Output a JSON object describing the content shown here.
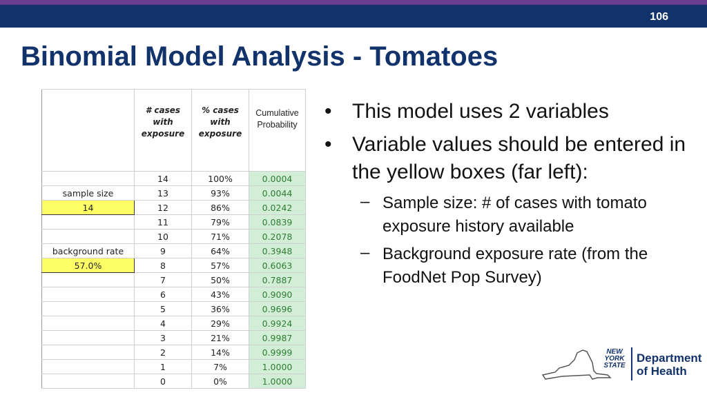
{
  "header": {
    "slide_number": "106"
  },
  "title": "Binomial Model Analysis - Tomatoes",
  "table": {
    "headers": [
      "# cases with exposure",
      "% cases with exposure",
      "Cumulative Probability"
    ],
    "rows": [
      {
        "label": "",
        "n": "14",
        "pct": "100%",
        "cum": "0.0004"
      },
      {
        "label": "sample size",
        "n": "13",
        "pct": "93%",
        "cum": "0.0044"
      },
      {
        "label": "14",
        "n": "12",
        "pct": "86%",
        "cum": "0.0242",
        "input": true
      },
      {
        "label": "",
        "n": "11",
        "pct": "79%",
        "cum": "0.0839"
      },
      {
        "label": "",
        "n": "10",
        "pct": "71%",
        "cum": "0.2078"
      },
      {
        "label": "background rate",
        "n": "9",
        "pct": "64%",
        "cum": "0.3948"
      },
      {
        "label": "57.0%",
        "n": "8",
        "pct": "57%",
        "cum": "0.6063",
        "input": true
      },
      {
        "label": "",
        "n": "7",
        "pct": "50%",
        "cum": "0.7887"
      },
      {
        "label": "",
        "n": "6",
        "pct": "43%",
        "cum": "0.9090"
      },
      {
        "label": "",
        "n": "5",
        "pct": "36%",
        "cum": "0.9696"
      },
      {
        "label": "",
        "n": "4",
        "pct": "29%",
        "cum": "0.9924"
      },
      {
        "label": "",
        "n": "3",
        "pct": "21%",
        "cum": "0.9987"
      },
      {
        "label": "",
        "n": "2",
        "pct": "14%",
        "cum": "0.9999"
      },
      {
        "label": "",
        "n": "1",
        "pct": "7%",
        "cum": "1.0000"
      },
      {
        "label": "",
        "n": "0",
        "pct": "0%",
        "cum": "1.0000"
      }
    ]
  },
  "bullets": [
    {
      "level": 1,
      "text": "This model uses 2 variables"
    },
    {
      "level": 1,
      "text": "Variable values should be entered in the yellow boxes (far left):"
    },
    {
      "level": 2,
      "text": "Sample size: # of cases with tomato exposure history available"
    },
    {
      "level": 2,
      "text": "Background exposure rate (from the FoodNet Pop Survey)"
    }
  ],
  "bullet_markers": {
    "level1": "•",
    "level2": "–"
  },
  "logo": {
    "state_text": "NEW YORK STATE",
    "dept_line1": "Department",
    "dept_line2": "of Health"
  },
  "colors": {
    "navy": "#12326b",
    "purple": "#6b3d8f",
    "input_yellow": "#ffff66",
    "cum_green": "#d3eed6"
  }
}
